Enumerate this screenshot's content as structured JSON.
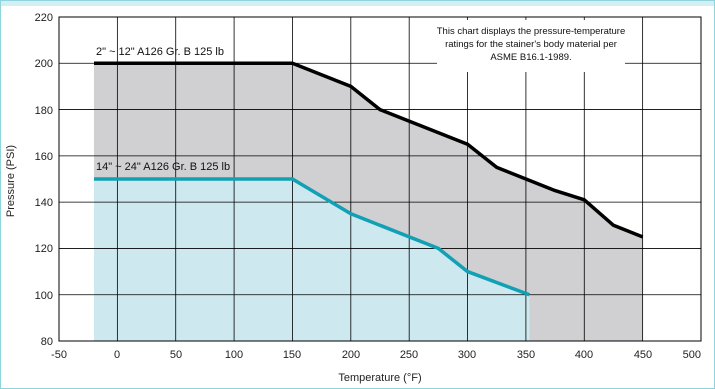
{
  "chart_data": {
    "type": "area",
    "xlabel": "Temperature (°F)",
    "ylabel": "Pressure (PSI)",
    "xlim": [
      -50,
      500
    ],
    "ylim": [
      80,
      220
    ],
    "x_ticks": [
      "-50",
      "0",
      "50",
      "100",
      "150",
      "200",
      "250",
      "300",
      "350",
      "400",
      "450",
      "500"
    ],
    "y_ticks": [
      "80",
      "100",
      "120",
      "140",
      "160",
      "180",
      "200",
      "220"
    ],
    "grid": true,
    "annotation_lines": [
      "This chart displays the pressure-temperature",
      "ratings  for the stainer's body material per",
      "ASME B16.1-1989."
    ],
    "series": [
      {
        "name": "2\" ~ 12\" A126 Gr. B 125 lb",
        "line_color": "#000000",
        "fill_color": "#d0d0d2",
        "points": [
          [
            -20,
            200
          ],
          [
            150,
            200
          ],
          [
            200,
            190
          ],
          [
            225,
            180
          ],
          [
            300,
            165
          ],
          [
            325,
            155
          ],
          [
            350,
            150
          ],
          [
            375,
            145
          ],
          [
            400,
            141
          ],
          [
            425,
            130
          ],
          [
            450,
            125
          ]
        ]
      },
      {
        "name": "14\" ~ 24\" A126 Gr. B 125 lb",
        "line_color": "#11a0b4",
        "fill_color": "#cde9ef",
        "points": [
          [
            -20,
            150
          ],
          [
            150,
            150
          ],
          [
            200,
            135
          ],
          [
            275,
            120
          ],
          [
            300,
            110
          ],
          [
            353,
            100
          ]
        ]
      }
    ]
  }
}
